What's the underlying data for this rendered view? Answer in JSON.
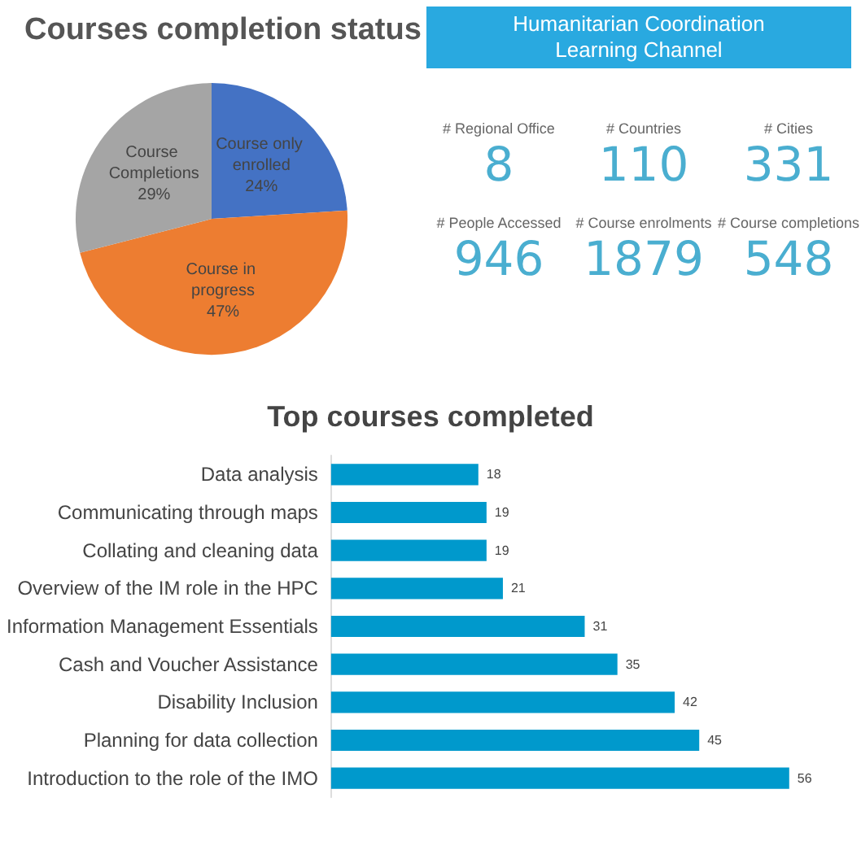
{
  "chart_data": [
    {
      "type": "pie",
      "title": "Courses completion status",
      "categories": [
        "Course only enrolled",
        "Course in progress",
        "Course Completions"
      ],
      "values": [
        24,
        47,
        29
      ],
      "colors": [
        "#4472c4",
        "#ed7d31",
        "#a5a5a5"
      ],
      "value_labels": [
        "24%",
        "47%",
        "29%"
      ],
      "legend": false
    },
    {
      "type": "other",
      "title": "Humanitarian Coordination Learning Channel",
      "categories": [
        "# Regional Office",
        "# Countries",
        "# Cities",
        "# People Accessed",
        "# Course enrolments",
        "# Course completions"
      ],
      "values": [
        8,
        110,
        331,
        946,
        1879,
        548
      ],
      "color": "#4aaed0",
      "data_labels": true
    },
    {
      "type": "bar",
      "orientation": "horizontal",
      "title": "Top courses completed",
      "categories": [
        "Data analysis",
        "Communicating through maps",
        "Collating and cleaning data",
        "Overview of the IM role in the HPC",
        "Information Management Essentials",
        "Cash and Voucher Assistance",
        "Disability Inclusion",
        "Planning for data collection",
        "Introduction to the role of the IMO"
      ],
      "values": [
        18,
        19,
        19,
        21,
        31,
        35,
        42,
        45,
        56
      ],
      "color": "#0099cc",
      "data_labels": true
    }
  ]
}
